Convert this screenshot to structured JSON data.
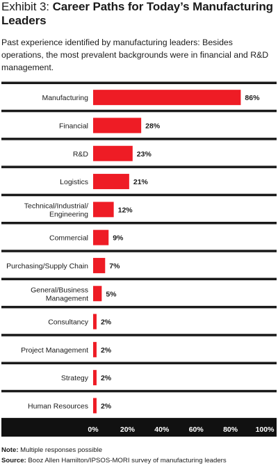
{
  "header": {
    "exhibit_label": "Exhibit 3:",
    "title": "Career Paths for Today’s Manufacturing Leaders",
    "subtitle": "Past experience identified by manufacturing leaders: Besides operations, the most prevalent backgrounds were in financial and R&D management."
  },
  "chart_data": {
    "type": "bar",
    "orientation": "horizontal",
    "categories": [
      "Manufacturing",
      "Financial",
      "R&D",
      "Logistics",
      "Technical/Industrial/ Engineering",
      "Commercial",
      "Purchasing/Supply Chain",
      "General/Business Management",
      "Consultancy",
      "Project Management",
      "Strategy",
      "Human Resources"
    ],
    "category_lines": [
      [
        "Manufacturing"
      ],
      [
        "Financial"
      ],
      [
        "R&D"
      ],
      [
        "Logistics"
      ],
      [
        "Technical/Industrial/",
        "Engineering"
      ],
      [
        "Commercial"
      ],
      [
        "Purchasing/Supply Chain"
      ],
      [
        "General/Business",
        "Management"
      ],
      [
        "Consultancy"
      ],
      [
        "Project Management"
      ],
      [
        "Strategy"
      ],
      [
        "Human Resources"
      ]
    ],
    "values": [
      86,
      28,
      23,
      21,
      12,
      9,
      7,
      5,
      2,
      2,
      2,
      2
    ],
    "value_labels": [
      "86%",
      "28%",
      "23%",
      "21%",
      "12%",
      "9%",
      "7%",
      "5%",
      "2%",
      "2%",
      "2%",
      "2%"
    ],
    "xlim": [
      0,
      100
    ],
    "x_ticks": [
      0,
      20,
      40,
      60,
      80,
      100
    ],
    "x_tick_labels": [
      "0%",
      "20%",
      "40%",
      "60%",
      "80%",
      "100%"
    ],
    "bar_color": "#ee1c25",
    "separator_color": "#1a1a1a",
    "axis_band_color": "#111111",
    "grid": false,
    "legend": "none"
  },
  "footnotes": {
    "note_label": "Note:",
    "note_text": " Multiple responses possible",
    "source_label": "Source:",
    "source_text": " Booz Allen Hamilton/IPSOS-MORI survey of manufacturing leaders"
  }
}
